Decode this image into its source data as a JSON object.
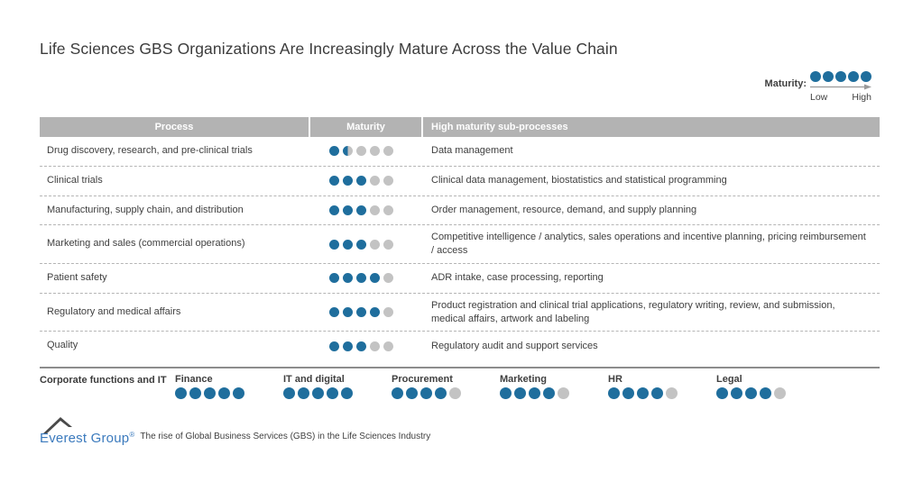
{
  "title": "Life Sciences GBS Organizations Are Increasingly Mature Across the Value Chain",
  "legend": {
    "label": "Maturity:",
    "dot_count": 5,
    "low_label": "Low",
    "high_label": "High"
  },
  "colors": {
    "dot_filled": "#1f6e9d",
    "dot_empty": "#c3c3c3",
    "header_bg": "#b3b3b3",
    "logo_blue": "#3b7abd"
  },
  "table": {
    "headers": [
      "Process",
      "Maturity",
      "High maturity sub-processes"
    ],
    "scale_max": 5,
    "rows": [
      {
        "process": "Drug discovery, research, and  pre-clinical trials",
        "maturity": 1.5,
        "subprocesses": "Data management"
      },
      {
        "process": "Clinical trials",
        "maturity": 3,
        "subprocesses": "Clinical data management, biostatistics and statistical programming"
      },
      {
        "process": "Manufacturing, supply chain, and distribution",
        "maturity": 3,
        "subprocesses": "Order management, resource, demand, and supply planning"
      },
      {
        "process": "Marketing and sales (commercial operations)",
        "maturity": 3,
        "subprocesses": "Competitive intelligence / analytics, sales operations and incentive planning, pricing reimbursement / access"
      },
      {
        "process": "Patient safety",
        "maturity": 4,
        "subprocesses": "ADR intake, case processing, reporting"
      },
      {
        "process": "Regulatory and medical affairs",
        "maturity": 4,
        "subprocesses": "Product registration and clinical trial applications, regulatory writing, review, and submission, medical affairs, artwork and labeling"
      },
      {
        "process": "Quality",
        "maturity": 3,
        "subprocesses": "Regulatory audit and support services"
      }
    ]
  },
  "corporate": {
    "label": "Corporate functions and IT",
    "functions": [
      {
        "name": "Finance",
        "maturity": 5
      },
      {
        "name": "IT and digital",
        "maturity": 5
      },
      {
        "name": "Procurement",
        "maturity": 4
      },
      {
        "name": "Marketing",
        "maturity": 4
      },
      {
        "name": "HR",
        "maturity": 4
      },
      {
        "name": "Legal",
        "maturity": 4
      }
    ]
  },
  "footer": {
    "logo_text": "Everest Group",
    "logo_reg": "®",
    "caption": "The rise of Global Business Services (GBS) in the Life Sciences Industry"
  },
  "chart_data": {
    "type": "table",
    "title": "Life Sciences GBS Organizations Are Increasingly Mature Across the Value Chain",
    "rating_scale": {
      "min": 0,
      "max": 5,
      "low_label": "Low",
      "high_label": "High"
    },
    "columns": [
      "Process",
      "Maturity",
      "High maturity sub-processes"
    ],
    "rows": [
      [
        "Drug discovery, research, and  pre-clinical trials",
        1.5,
        "Data management"
      ],
      [
        "Clinical trials",
        3,
        "Clinical data management, biostatistics and statistical programming"
      ],
      [
        "Manufacturing, supply chain, and distribution",
        3,
        "Order management, resource, demand, and supply planning"
      ],
      [
        "Marketing and sales (commercial operations)",
        3,
        "Competitive intelligence / analytics, sales operations and incentive planning, pricing reimbursement / access"
      ],
      [
        "Patient safety",
        4,
        "ADR intake, case processing, reporting"
      ],
      [
        "Regulatory and medical affairs",
        4,
        "Product registration and clinical trial applications, regulatory writing, review, and submission, medical affairs, artwork and labeling"
      ],
      [
        "Quality",
        3,
        "Regulatory audit and support services"
      ]
    ],
    "corporate_functions": [
      {
        "name": "Finance",
        "maturity": 5
      },
      {
        "name": "IT and digital",
        "maturity": 5
      },
      {
        "name": "Procurement",
        "maturity": 4
      },
      {
        "name": "Marketing",
        "maturity": 4
      },
      {
        "name": "HR",
        "maturity": 4
      },
      {
        "name": "Legal",
        "maturity": 4
      }
    ]
  }
}
